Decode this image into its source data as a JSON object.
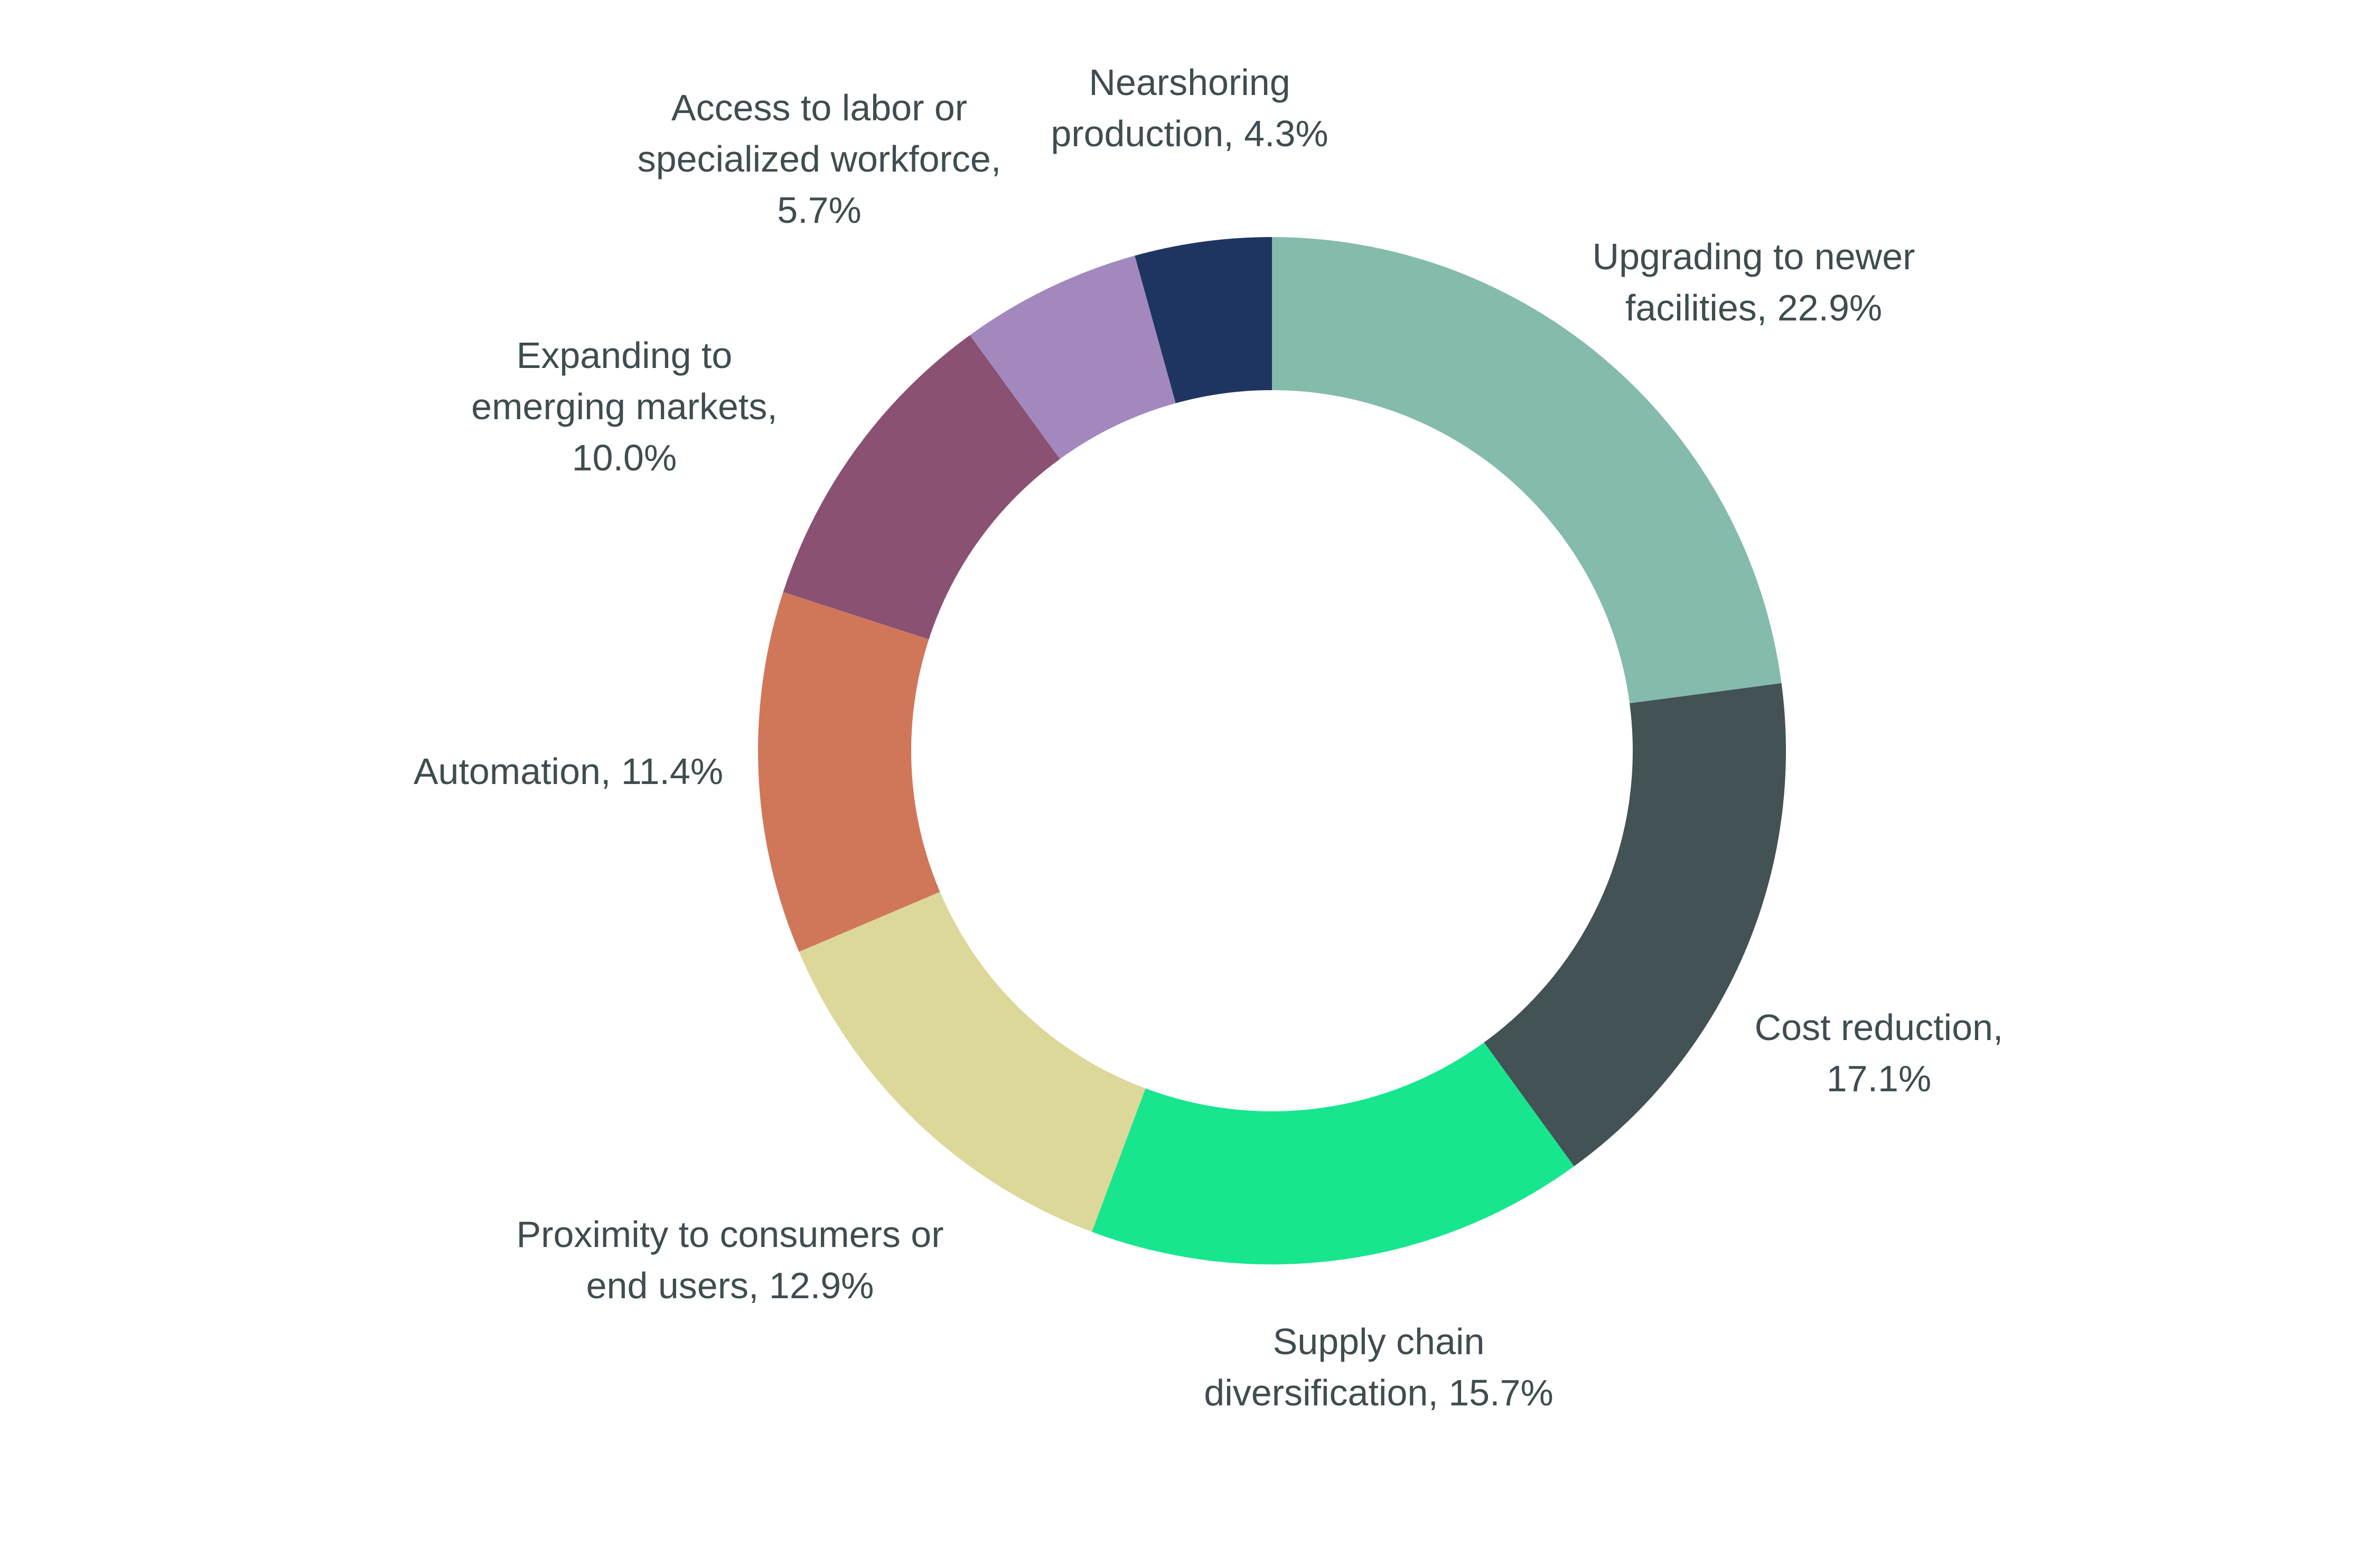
{
  "chart_data": {
    "type": "pie",
    "donut": true,
    "direction": "clockwise-from-top",
    "slices": [
      {
        "label": "Upgrading to newer facilities",
        "value": 22.9,
        "text": [
          "Upgrading to newer",
          "facilities, 22.9%"
        ],
        "color": "#84bbad"
      },
      {
        "label": "Cost reduction",
        "value": 17.1,
        "text": [
          "Cost reduction,",
          "17.1%"
        ],
        "color": "#435254"
      },
      {
        "label": "Supply chain diversification",
        "value": 15.7,
        "text": [
          "Supply chain",
          "diversification, 15.7%"
        ],
        "color": "#17e68e"
      },
      {
        "label": "Proximity to consumers or end users",
        "value": 12.9,
        "text": [
          "Proximity to consumers or",
          "end users, 12.9%"
        ],
        "color": "#dbd89a"
      },
      {
        "label": "Automation",
        "value": 11.4,
        "text": [
          "Automation, 11.4%"
        ],
        "color": "#d0775a"
      },
      {
        "label": "Expanding to emerging markets",
        "value": 10.0,
        "text": [
          "Expanding to",
          "emerging markets,",
          "10.0%"
        ],
        "color": "#8a5172"
      },
      {
        "label": "Access to labor or specialized workforce",
        "value": 5.7,
        "text": [
          "Access to labor or",
          "specialized workforce,",
          "5.7%"
        ],
        "color": "#a388bd"
      },
      {
        "label": "Nearshoring production",
        "value": 4.3,
        "text": [
          "Nearshoring",
          "production, 4.3%"
        ],
        "color": "#1f3561"
      }
    ]
  }
}
